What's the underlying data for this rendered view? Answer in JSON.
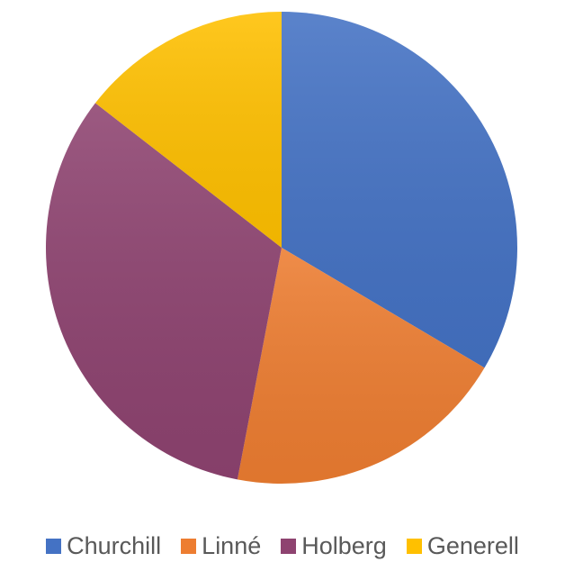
{
  "chart_data": {
    "type": "pie",
    "title": "",
    "legend_position": "bottom",
    "categories": [
      "Churchill",
      "Linné",
      "Holberg",
      "Generell"
    ],
    "values": [
      33.5,
      19.5,
      32.5,
      14.5
    ],
    "colors": [
      "#4472c4",
      "#ed7d31",
      "#8e4370",
      "#ffc000"
    ],
    "start_angle_deg": 0,
    "direction": "clockwise"
  }
}
